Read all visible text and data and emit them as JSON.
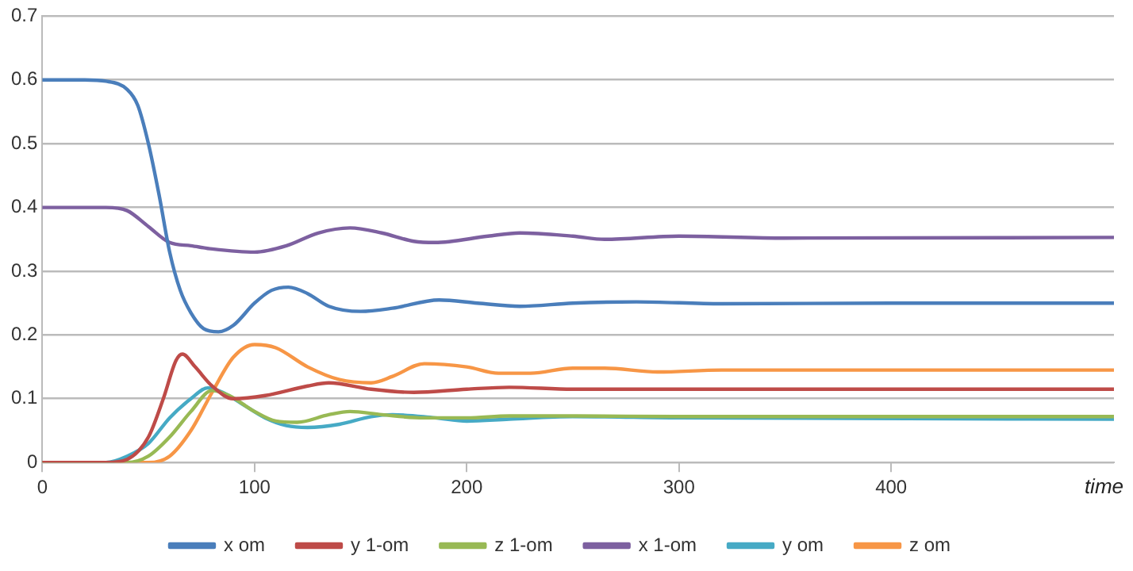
{
  "chart_data": {
    "type": "line",
    "xlabel": "time",
    "xlim": [
      0,
      505
    ],
    "xticks": [
      0,
      100,
      200,
      300,
      400
    ],
    "ylim": [
      0,
      0.7
    ],
    "yticks": [
      0,
      0.1,
      0.2,
      0.3,
      0.4,
      0.5,
      0.6,
      0.7
    ],
    "grid": "y",
    "legend": "bottom",
    "marker": "none",
    "line_style": "solid",
    "series": [
      {
        "name": "x om",
        "color": "#4a7ebb",
        "x": [
          0,
          20,
          30,
          40,
          45,
          50,
          55,
          60,
          65,
          70,
          76,
          83,
          90,
          100,
          108,
          116,
          125,
          135,
          150,
          165,
          187,
          205,
          225,
          250,
          280,
          320,
          400,
          505
        ],
        "values": [
          0.6,
          0.6,
          0.598,
          0.585,
          0.56,
          0.5,
          0.42,
          0.33,
          0.27,
          0.235,
          0.21,
          0.205,
          0.215,
          0.25,
          0.27,
          0.275,
          0.265,
          0.245,
          0.237,
          0.242,
          0.255,
          0.25,
          0.245,
          0.25,
          0.252,
          0.249,
          0.25,
          0.25
        ]
      },
      {
        "name": "y 1-om",
        "color": "#be4b48",
        "x": [
          0,
          30,
          40,
          50,
          57,
          63,
          66,
          72,
          80,
          90,
          105,
          125,
          135,
          155,
          175,
          200,
          220,
          250,
          505
        ],
        "values": [
          0,
          0,
          0.005,
          0.04,
          0.1,
          0.16,
          0.17,
          0.15,
          0.12,
          0.1,
          0.105,
          0.12,
          0.125,
          0.115,
          0.11,
          0.115,
          0.118,
          0.115,
          0.115
        ]
      },
      {
        "name": "z 1-om",
        "color": "#98b954",
        "x": [
          0,
          40,
          50,
          60,
          70,
          80,
          88,
          100,
          110,
          120,
          135,
          145,
          160,
          180,
          200,
          220,
          250,
          300,
          505
        ],
        "values": [
          0,
          0,
          0.01,
          0.04,
          0.08,
          0.113,
          0.105,
          0.08,
          0.065,
          0.063,
          0.075,
          0.08,
          0.075,
          0.07,
          0.07,
          0.073,
          0.073,
          0.072,
          0.072
        ]
      },
      {
        "name": "x 1-om",
        "color": "#7d60a0",
        "x": [
          0,
          30,
          40,
          50,
          60,
          70,
          80,
          100,
          115,
          130,
          145,
          160,
          175,
          185,
          210,
          225,
          250,
          265,
          300,
          350,
          505
        ],
        "values": [
          0.4,
          0.4,
          0.395,
          0.37,
          0.345,
          0.34,
          0.335,
          0.33,
          0.34,
          0.36,
          0.368,
          0.36,
          0.347,
          0.345,
          0.355,
          0.36,
          0.355,
          0.35,
          0.355,
          0.352,
          0.353
        ]
      },
      {
        "name": "y om",
        "color": "#46aac5",
        "x": [
          0,
          30,
          40,
          50,
          60,
          70,
          78,
          85,
          95,
          105,
          115,
          125,
          140,
          155,
          165,
          185,
          200,
          220,
          250,
          300,
          505
        ],
        "values": [
          0,
          0,
          0.01,
          0.03,
          0.07,
          0.1,
          0.117,
          0.11,
          0.09,
          0.07,
          0.058,
          0.055,
          0.06,
          0.072,
          0.075,
          0.07,
          0.065,
          0.068,
          0.072,
          0.07,
          0.068
        ]
      },
      {
        "name": "z om",
        "color": "#f79646",
        "x": [
          0,
          50,
          60,
          70,
          80,
          90,
          100,
          110,
          125,
          140,
          155,
          165,
          180,
          200,
          215,
          230,
          250,
          265,
          290,
          320,
          505
        ],
        "values": [
          0,
          0,
          0.01,
          0.05,
          0.11,
          0.165,
          0.185,
          0.18,
          0.15,
          0.13,
          0.125,
          0.135,
          0.155,
          0.15,
          0.14,
          0.14,
          0.148,
          0.148,
          0.142,
          0.145,
          0.145
        ]
      }
    ]
  }
}
